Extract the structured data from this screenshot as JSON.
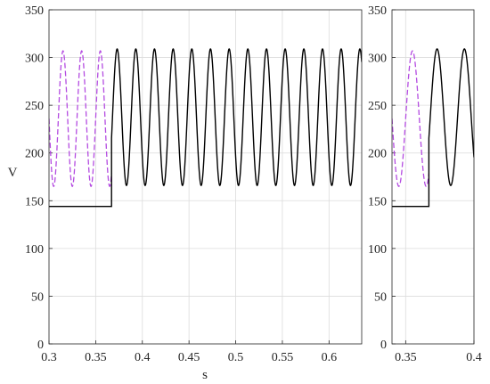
{
  "chart_data": [
    {
      "type": "line",
      "title": "",
      "xlabel": "s",
      "ylabel": "V",
      "xlim": [
        0.3,
        0.635
      ],
      "ylim": [
        0,
        350
      ],
      "xticks": [
        "0.3",
        "0.35",
        "0.4",
        "0.45",
        "0.5",
        "0.55",
        "0.6"
      ],
      "xtick_values": [
        0.3,
        0.35,
        0.4,
        0.45,
        0.5,
        0.55,
        0.6
      ],
      "yticks": [
        "0",
        "50",
        "100",
        "150",
        "200",
        "250",
        "300",
        "350"
      ],
      "ytick_values": [
        0,
        50,
        100,
        150,
        200,
        250,
        300,
        350
      ],
      "grid": true,
      "series": [
        {
          "style": "dashed",
          "color": "#b44be1",
          "x_range": [
            0.3,
            0.367
          ],
          "waveform": {
            "min": 165,
            "max": 307,
            "frequency_hz": 50,
            "phase_peak_s": 0.315
          }
        },
        {
          "style": "solid",
          "color": "#000000",
          "segments": [
            {
              "x_range": [
                0.3,
                0.367
              ],
              "constant": 144
            },
            {
              "x_range": [
                0.367,
                0.635
              ],
              "waveform": {
                "min": 166,
                "max": 309,
                "frequency_hz": 50,
                "phase_peak_s": 0.373
              }
            }
          ]
        }
      ]
    },
    {
      "type": "line",
      "title": "",
      "xlabel": "",
      "ylabel": "",
      "xlim": [
        0.34,
        0.4
      ],
      "ylim": [
        0,
        350
      ],
      "xticks": [
        "0.35",
        "0.4"
      ],
      "xtick_values": [
        0.35,
        0.4
      ],
      "yticks": [
        "0",
        "50",
        "100",
        "150",
        "200",
        "250",
        "300",
        "350"
      ],
      "ytick_values": [
        0,
        50,
        100,
        150,
        200,
        250,
        300,
        350
      ],
      "grid": true,
      "series": [
        {
          "style": "dashed",
          "color": "#b44be1",
          "x_range": [
            0.34,
            0.367
          ],
          "waveform": {
            "min": 165,
            "max": 307,
            "frequency_hz": 50,
            "phase_peak_s": 0.355
          }
        },
        {
          "style": "solid",
          "color": "#000000",
          "segments": [
            {
              "x_range": [
                0.34,
                0.367
              ],
              "constant": 144
            },
            {
              "x_range": [
                0.367,
                0.4
              ],
              "waveform": {
                "min": 166,
                "max": 309,
                "frequency_hz": 50,
                "phase_peak_s": 0.373
              }
            }
          ]
        }
      ]
    }
  ]
}
